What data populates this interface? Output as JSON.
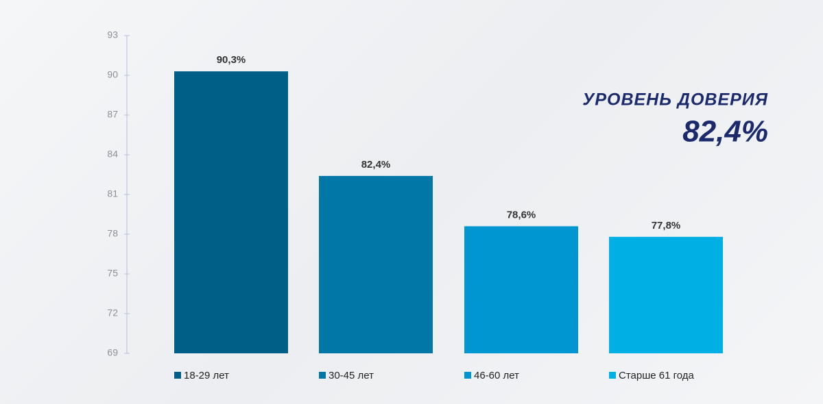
{
  "chart_data": {
    "type": "bar",
    "annotation": {
      "title": "УРОВЕНЬ ДОВЕРИЯ",
      "value": "82,4%"
    },
    "categories": [
      "18-29 лет",
      "30-45 лет",
      "46-60  лет",
      "Старше 61 года"
    ],
    "values": [
      90.3,
      82.4,
      78.6,
      77.8
    ],
    "value_labels": [
      "90,3%",
      "82,4%",
      "78,6%",
      "77,8%"
    ],
    "colors": [
      "#005f87",
      "#0077a6",
      "#0096d1",
      "#00b0e4"
    ],
    "ylim": [
      69,
      93
    ],
    "yticks": [
      69,
      72,
      75,
      78,
      81,
      84,
      87,
      90,
      93
    ]
  }
}
